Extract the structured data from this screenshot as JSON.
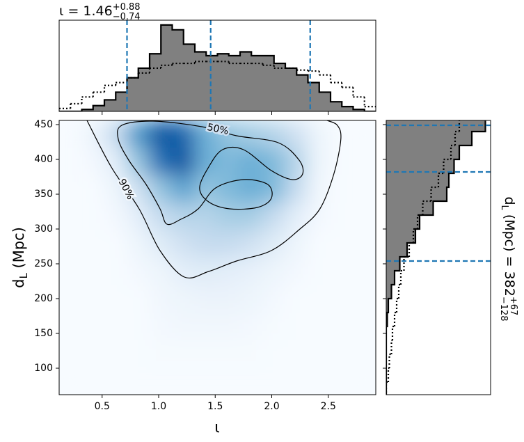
{
  "chart_data": {
    "type": "corner",
    "top_title": [
      "ι = 1.46",
      "+0.88",
      "−0.74"
    ],
    "right_title": [
      "d",
      "L",
      " (Mpc) = 382",
      "+67",
      "−128"
    ],
    "xlabel": "ι",
    "ylabel": [
      "d",
      "L",
      " (Mpc)"
    ],
    "xlim": [
      0.12,
      2.92
    ],
    "ylim": [
      62,
      456
    ],
    "xticks": [
      0.5,
      {
        "value": 1,
        "label": "1.0"
      },
      1.5,
      {
        "value": 2,
        "label": "2.0"
      },
      2.5
    ],
    "yticks": [
      100,
      150,
      200,
      250,
      300,
      350,
      400,
      450
    ],
    "density": {
      "x": [
        0.22,
        0.42,
        0.62,
        0.82,
        1.02,
        1.22,
        1.42,
        1.62,
        1.82,
        2.02,
        2.22,
        2.42,
        2.62,
        2.82
      ],
      "y": [
        436,
        397,
        357,
        318,
        279,
        239,
        200,
        160,
        121,
        82
      ],
      "values": [
        [
          0,
          0.05,
          0.25,
          0.6,
          0.85,
          0.8,
          0.5,
          0.4,
          0.35,
          0.3,
          0.2,
          0.05,
          0,
          0
        ],
        [
          0,
          0.02,
          0.1,
          0.4,
          0.75,
          0.85,
          0.5,
          0.45,
          0.5,
          0.45,
          0.3,
          0.05,
          0,
          0
        ],
        [
          0,
          0,
          0.05,
          0.2,
          0.4,
          0.55,
          0.4,
          0.45,
          0.5,
          0.45,
          0.25,
          0.03,
          0,
          0
        ],
        [
          0,
          0,
          0.02,
          0.1,
          0.25,
          0.3,
          0.3,
          0.35,
          0.35,
          0.25,
          0.1,
          0.02,
          0,
          0
        ],
        [
          0,
          0,
          0,
          0.05,
          0.12,
          0.2,
          0.25,
          0.25,
          0.2,
          0.12,
          0.05,
          0,
          0,
          0
        ],
        [
          0,
          0,
          0,
          0.02,
          0.05,
          0.1,
          0.12,
          0.1,
          0.08,
          0.05,
          0.02,
          0,
          0,
          0
        ],
        [
          0,
          0,
          0,
          0,
          0.03,
          0.05,
          0.06,
          0.06,
          0.05,
          0.02,
          0,
          0,
          0,
          0
        ],
        [
          0,
          0,
          0,
          0,
          0.02,
          0.03,
          0.03,
          0.03,
          0.02,
          0.01,
          0,
          0,
          0,
          0
        ],
        [
          0,
          0,
          0,
          0,
          0.01,
          0.01,
          0.01,
          0.01,
          0.01,
          0,
          0,
          0,
          0,
          0
        ],
        [
          0,
          0,
          0,
          0,
          0,
          0,
          0,
          0,
          0,
          0,
          0,
          0,
          0,
          0
        ]
      ],
      "colormap": [
        "#f7fbff",
        "#deebf7",
        "#c6dbef",
        "#9ecae1",
        "#6baed6",
        "#4292c6",
        "#2171b5",
        "#08519c",
        "#08306b"
      ]
    },
    "contours": [
      {
        "label": "50%",
        "closed": true,
        "color": "#000000",
        "x": [
          0.674,
          0.95,
          1.381,
          1.688,
          2.057,
          2.242,
          2.273,
          2.18,
          1.996,
          1.75,
          1.565,
          1.442,
          1.362,
          1.442,
          1.627,
          1.873,
          1.996,
          1.965,
          1.75,
          1.504,
          1.35,
          1.196,
          1.073,
          1.012,
          0.889,
          0.735,
          0.643
        ],
        "y": [
          449,
          455,
          447,
          434,
          424,
          399,
          379,
          371,
          384,
          414,
          414,
          389,
          359,
          339,
          329,
          331,
          344,
          364,
          371,
          359,
          329,
          314,
          307,
          329,
          364,
          399,
          429
        ]
      },
      {
        "label": "90%",
        "closed": false,
        "color": "#000000",
        "x": [
          0.366,
          0.581,
          0.827,
          1.012,
          1.227,
          1.442,
          1.688,
          1.996,
          2.242,
          2.426,
          2.549,
          2.611,
          2.58,
          2.488
        ],
        "y": [
          456,
          389,
          329,
          269,
          231,
          239,
          254,
          269,
          299,
          329,
          379,
          429,
          449,
          456
        ]
      }
    ],
    "x_hist": {
      "bins": [
        0.12,
        0.22,
        0.32,
        0.42,
        0.52,
        0.62,
        0.72,
        0.82,
        0.92,
        1.02,
        1.12,
        1.22,
        1.32,
        1.42,
        1.52,
        1.62,
        1.72,
        1.82,
        1.92,
        2.02,
        2.12,
        2.22,
        2.32,
        2.42,
        2.52,
        2.62,
        2.72,
        2.82,
        2.92
      ],
      "hlim": [
        0,
        0.95
      ],
      "series": [
        {
          "style": "filled",
          "color": "#808080",
          "values": [
            0,
            0,
            0.02,
            0.06,
            0.12,
            0.2,
            0.35,
            0.45,
            0.6,
            0.9,
            0.85,
            0.7,
            0.62,
            0.58,
            0.6,
            0.58,
            0.62,
            0.58,
            0.58,
            0.5,
            0.45,
            0.38,
            0.3,
            0.2,
            0.1,
            0.05,
            0.02,
            0
          ]
        },
        {
          "style": "dotted",
          "color": "#000000",
          "values": [
            0.03,
            0.08,
            0.15,
            0.2,
            0.27,
            0.3,
            0.35,
            0.4,
            0.45,
            0.48,
            0.5,
            0.5,
            0.52,
            0.52,
            0.52,
            0.5,
            0.5,
            0.5,
            0.48,
            0.45,
            0.45,
            0.43,
            0.42,
            0.38,
            0.3,
            0.25,
            0.15,
            0.05
          ]
        }
      ],
      "quantiles": [
        0.72,
        1.46,
        2.34
      ],
      "quantile_color": "#1f77b4"
    },
    "y_hist": {
      "bins": [
        60,
        80,
        100,
        120,
        140,
        160,
        180,
        200,
        220,
        240,
        260,
        280,
        300,
        320,
        340,
        360,
        380,
        400,
        420,
        440,
        460
      ],
      "hlim": [
        0,
        1
      ],
      "series": [
        {
          "style": "filled",
          "color": "#808080",
          "values": [
            0,
            0,
            0,
            0,
            0,
            0.01,
            0.02,
            0.05,
            0.08,
            0.13,
            0.2,
            0.28,
            0.32,
            0.45,
            0.58,
            0.6,
            0.65,
            0.7,
            0.82,
            0.95
          ]
        },
        {
          "style": "dotted",
          "color": "#000000",
          "values": [
            0,
            0.02,
            0.03,
            0.05,
            0.06,
            0.08,
            0.1,
            0.12,
            0.14,
            0.17,
            0.22,
            0.26,
            0.3,
            0.35,
            0.43,
            0.5,
            0.55,
            0.62,
            0.66,
            0.7
          ]
        }
      ],
      "quantiles": [
        254,
        382,
        449
      ],
      "quantile_color": "#1f77b4"
    }
  }
}
